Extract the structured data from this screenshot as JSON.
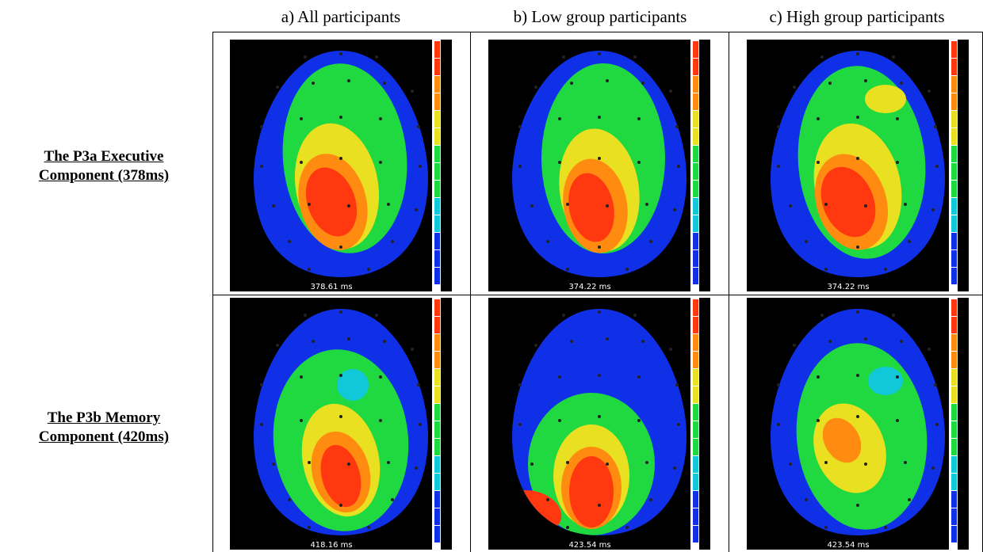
{
  "columns": [
    "a) All participants",
    "b) Low group participants",
    "c) High group participants"
  ],
  "rows": [
    {
      "label_line1": "The P3a Executive",
      "label_line2": "Component (378ms)"
    },
    {
      "label_line1": "The P3b Memory",
      "label_line2": "Component (420ms)"
    }
  ],
  "maps": [
    {
      "name": "map-a-p3a",
      "time": "378.61 ms",
      "hot": "a1"
    },
    {
      "name": "map-b-p3a",
      "time": "374.22 ms",
      "hot": "b1"
    },
    {
      "name": "map-c-p3a",
      "time": "374.22 ms",
      "hot": "c1"
    },
    {
      "name": "map-a-p3b",
      "time": "418.16 ms",
      "hot": "a2"
    },
    {
      "name": "map-b-p3b",
      "time": "423.54 ms",
      "hot": "b2"
    },
    {
      "name": "map-c-p3b",
      "time": "423.54 ms",
      "hot": "c2"
    }
  ],
  "colors": {
    "background": "#000000",
    "blue": "#1030e8",
    "cyan": "#10c8d8",
    "green": "#20d840",
    "yellow": "#e8e020",
    "orange": "#ff8c10",
    "red": "#ff3810",
    "electrode": "#222222"
  }
}
